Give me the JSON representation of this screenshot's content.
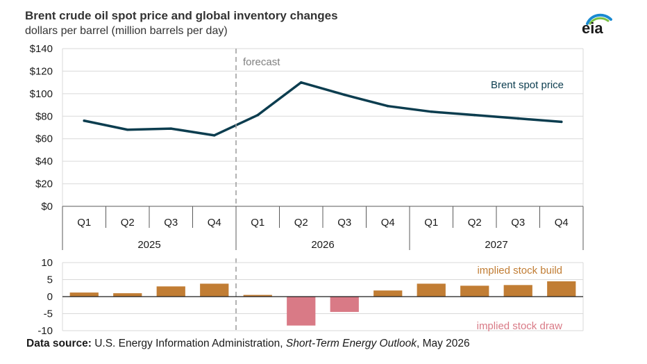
{
  "header": {
    "title": "Brent crude oil spot price and global inventory changes",
    "subtitle": "dollars per barrel (million barrels per day)",
    "logo_text": "eia"
  },
  "colors": {
    "line": "#0c3d4f",
    "build": "#c17d34",
    "draw": "#d97a86",
    "grid": "#d9d9d9",
    "axis": "#595959"
  },
  "chart_data": [
    {
      "type": "line",
      "title": "",
      "series": [
        {
          "name": "Brent spot price",
          "values": [
            76,
            68,
            69,
            63,
            81,
            110,
            99,
            89,
            84,
            81,
            78,
            75
          ]
        }
      ],
      "categories": [
        "Q1",
        "Q2",
        "Q3",
        "Q4",
        "Q1",
        "Q2",
        "Q3",
        "Q4",
        "Q1",
        "Q2",
        "Q3",
        "Q4"
      ],
      "years": [
        "2025",
        "2026",
        "2027"
      ],
      "y_ticks": [
        "$0",
        "$20",
        "$40",
        "$60",
        "$80",
        "$100",
        "$120",
        "$140"
      ],
      "ylim": [
        0,
        140
      ],
      "grid": true,
      "annotation": "forecast"
    },
    {
      "type": "bar",
      "title": "",
      "series": [
        {
          "name": "",
          "values": [
            1.2,
            1.0,
            3.0,
            3.8,
            0.5,
            -8.5,
            -4.5,
            1.8,
            3.8,
            3.2,
            3.4,
            4.5
          ]
        }
      ],
      "categories": [
        "Q1",
        "Q2",
        "Q3",
        "Q4",
        "Q1",
        "Q2",
        "Q3",
        "Q4",
        "Q1",
        "Q2",
        "Q3",
        "Q4"
      ],
      "y_ticks": [
        "10",
        "5",
        "0",
        "-5",
        "-10"
      ],
      "ylim": [
        -10,
        10
      ],
      "grid": true,
      "labels": {
        "build": "implied stock build",
        "draw": "implied stock draw"
      }
    }
  ],
  "source": {
    "label": "Data source:",
    "text": " U.S. Energy Information Administration, ",
    "publication": "Short-Term Energy Outlook",
    "date": ", May 2026"
  }
}
